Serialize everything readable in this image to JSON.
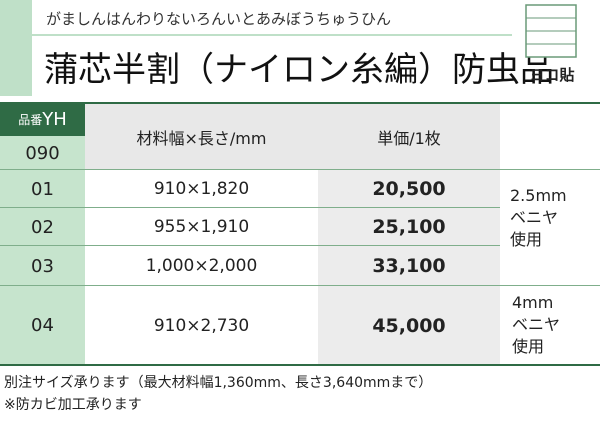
{
  "header": {
    "subtitle": "がましんはんわりないろんいとあみぼうちゅうひん",
    "title": "蒲芯半割（ナイロン糸編）防虫品",
    "icon_label": "ヨコ貼"
  },
  "table": {
    "code_label": "品番",
    "code_prefix": "YH",
    "code": "090",
    "columns": [
      "材料幅×長さ/mm",
      "単価/1枚"
    ],
    "rows": [
      [
        "01",
        "910×1,820",
        "20,500"
      ],
      [
        "02",
        "955×1,910",
        "25,100"
      ],
      [
        "03",
        "1,000×2,000",
        "33,100"
      ],
      [
        "04",
        "910×2,730",
        "45,000"
      ]
    ],
    "notes": [
      [
        "2.5mm",
        "ベニヤ",
        "使用"
      ],
      [
        "4mm",
        "ベニヤ",
        "使用"
      ]
    ]
  },
  "footer": [
    "別注サイズ承ります（最大材料幅1,360mm、長さ3,640mmまで）",
    "※防カビ加工承ります"
  ]
}
